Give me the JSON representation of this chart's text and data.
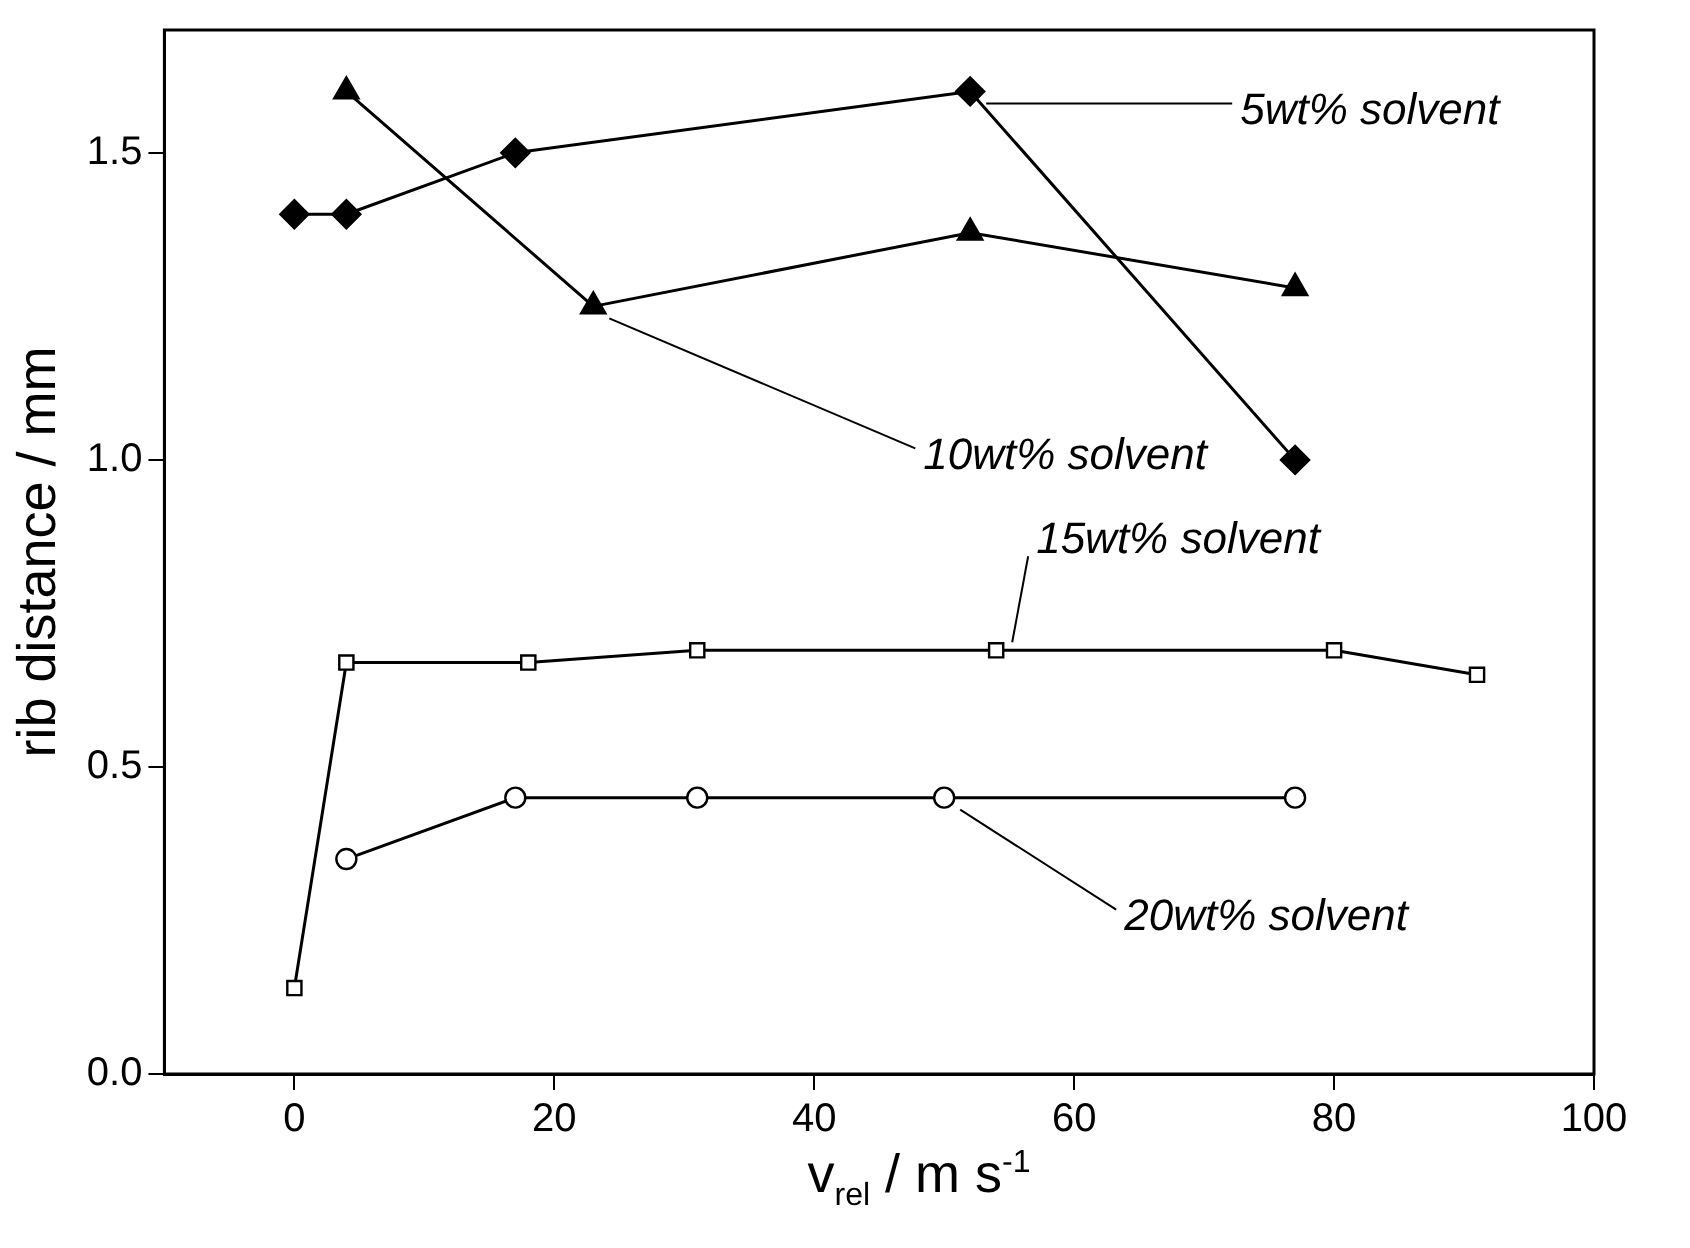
{
  "chart_data": {
    "type": "line",
    "xlabel": "v$_{rel}$ / m s$^{-1}$",
    "ylabel": "rib distance / mm",
    "xlim": [
      -10,
      100
    ],
    "xticks": [
      0,
      20,
      40,
      60,
      80,
      100
    ],
    "ylim": [
      0,
      1.7
    ],
    "yticks": [
      {
        "value": 0,
        "label": "0.0"
      },
      {
        "value": 0.5,
        "label": "0.5"
      },
      {
        "value": 1,
        "label": "1.0"
      },
      {
        "value": 1.5,
        "label": "1.5"
      }
    ],
    "grid": false,
    "legend": false,
    "line_style": "solid",
    "series": [
      {
        "name": "5wt% solvent",
        "color": "#000000",
        "marker": "diamond",
        "x": [
          0,
          4,
          17,
          52,
          77
        ],
        "values": [
          1.4,
          1.4,
          1.5,
          1.6,
          1.0
        ]
      },
      {
        "name": "10wt% solvent",
        "color": "#000000",
        "marker": "triangle",
        "x": [
          4,
          23,
          52,
          77
        ],
        "values": [
          1.6,
          1.25,
          1.37,
          1.28
        ]
      },
      {
        "name": "15wt% solvent",
        "color": "#000000",
        "marker": "square",
        "x": [
          0,
          4,
          18,
          31,
          54,
          80,
          91
        ],
        "values": [
          0.14,
          0.67,
          0.67,
          0.69,
          0.69,
          0.69,
          0.65
        ]
      },
      {
        "name": "20wt% solvent",
        "color": "#000000",
        "marker": "circle",
        "x": [
          4,
          17,
          31,
          50,
          77
        ],
        "values": [
          0.35,
          0.45,
          0.45,
          0.45,
          0.45
        ]
      }
    ]
  }
}
